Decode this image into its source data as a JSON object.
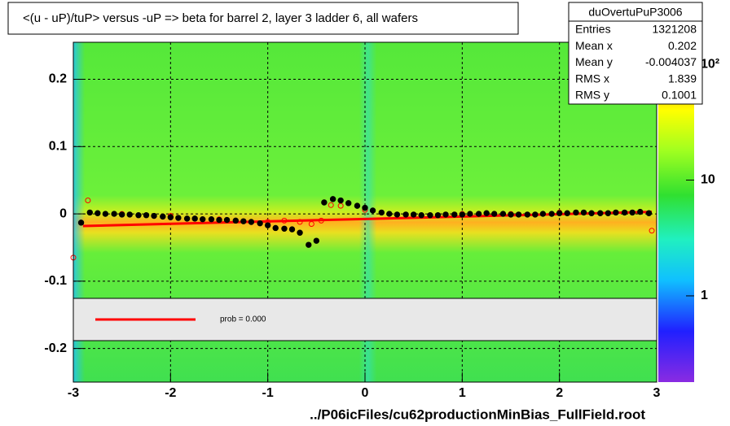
{
  "chart_data": {
    "type": "scatter",
    "title": "<(u - uP)/tuP> versus  -uP => beta for barrel 2, layer 3 ladder 6, all wafers",
    "footer": "../P06icFiles/cu62productionMinBias_FullField.root",
    "xlim": [
      -3,
      3
    ],
    "ylim": [
      -0.25,
      0.255
    ],
    "xticks": [
      -3,
      -2,
      -1,
      0,
      1,
      2,
      3
    ],
    "yticks": [
      -0.2,
      -0.1,
      0,
      0.1,
      0.2
    ],
    "grid": true,
    "zlog": true,
    "zlim": [
      0.18,
      155
    ],
    "zticks": [
      {
        "value": 1,
        "label": "1"
      },
      {
        "value": 10,
        "label": "10"
      },
      {
        "value": 100,
        "label": "10²"
      }
    ],
    "series": [
      {
        "color": "#000000",
        "marker": "filled",
        "x": [
          -2.92,
          -2.83,
          -2.75,
          -2.67,
          -2.58,
          -2.5,
          -2.42,
          -2.33,
          -2.25,
          -2.17,
          -2.08,
          -2.0,
          -1.92,
          -1.83,
          -1.75,
          -1.67,
          -1.58,
          -1.5,
          -1.42,
          -1.33,
          -1.25,
          -1.17,
          -1.08,
          -1.0,
          -0.92,
          -0.83,
          -0.75,
          -0.67,
          -0.58,
          -0.5,
          -0.42,
          -0.33,
          -0.25,
          -0.17,
          -0.08,
          0.0,
          0.08,
          0.17,
          0.25,
          0.33,
          0.42,
          0.5,
          0.58,
          0.67,
          0.75,
          0.83,
          0.92,
          1.0,
          1.08,
          1.17,
          1.25,
          1.33,
          1.42,
          1.5,
          1.58,
          1.67,
          1.75,
          1.83,
          1.92,
          2.0,
          2.08,
          2.17,
          2.25,
          2.33,
          2.42,
          2.5,
          2.58,
          2.67,
          2.75,
          2.83,
          2.92
        ],
        "values": [
          -0.013,
          0.002,
          0.001,
          0.0,
          0.0,
          -0.001,
          -0.001,
          -0.002,
          -0.002,
          -0.003,
          -0.004,
          -0.005,
          -0.006,
          -0.007,
          -0.007,
          -0.008,
          -0.008,
          -0.009,
          -0.009,
          -0.01,
          -0.011,
          -0.012,
          -0.014,
          -0.017,
          -0.021,
          -0.022,
          -0.023,
          -0.028,
          -0.046,
          -0.04,
          0.017,
          0.022,
          0.02,
          0.016,
          0.012,
          0.009,
          0.005,
          0.002,
          0.0,
          -0.001,
          -0.001,
          -0.001,
          -0.002,
          -0.002,
          -0.002,
          -0.001,
          -0.001,
          -0.001,
          0.0,
          0.0,
          0.001,
          0.0,
          0.0,
          -0.001,
          -0.001,
          -0.001,
          -0.001,
          0.0,
          0.0,
          0.001,
          0.001,
          0.002,
          0.002,
          0.001,
          0.001,
          0.001,
          0.002,
          0.002,
          0.002,
          0.003,
          0.001
        ]
      },
      {
        "color": "#ff0000",
        "marker": "open",
        "x": [
          -3.0,
          -2.85,
          -2.5,
          -2.0,
          -1.5,
          -1.0,
          -0.83,
          -0.67,
          -0.55,
          -0.45,
          -0.35,
          -0.25,
          0.0,
          0.5,
          1.0,
          1.5,
          2.0,
          2.5,
          2.95
        ],
        "values": [
          -0.065,
          0.02,
          0.0,
          -0.003,
          -0.008,
          -0.012,
          -0.01,
          -0.012,
          -0.015,
          -0.01,
          0.013,
          0.012,
          0.006,
          -0.002,
          0.0,
          0.0,
          0.002,
          0.001,
          -0.025
        ]
      }
    ],
    "fit": {
      "color": "#ff0000",
      "x": [
        -2.9,
        2.95
      ],
      "values": [
        -0.018,
        0.003
      ]
    },
    "legend_text": "prob = 0.000",
    "stats": {
      "title": "duOvertuPuP3006",
      "rows": [
        [
          "Entries",
          "1321208"
        ],
        [
          "Mean x",
          "0.202"
        ],
        [
          "Mean y",
          "-0.004037"
        ],
        [
          "RMS x",
          "1.839"
        ],
        [
          "RMS y",
          "0.1001"
        ]
      ]
    }
  }
}
